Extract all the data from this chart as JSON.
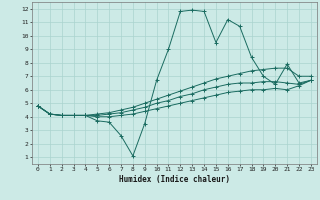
{
  "xlabel": "Humidex (Indice chaleur)",
  "ylabel": "",
  "bg_color": "#cceae6",
  "grid_color": "#aad4cf",
  "line_color": "#1a6b60",
  "xlim": [
    -0.5,
    23.5
  ],
  "ylim": [
    0.5,
    12.5
  ],
  "xticks": [
    0,
    1,
    2,
    3,
    4,
    5,
    6,
    7,
    8,
    9,
    10,
    11,
    12,
    13,
    14,
    15,
    16,
    17,
    18,
    19,
    20,
    21,
    22,
    23
  ],
  "yticks": [
    1,
    2,
    3,
    4,
    5,
    6,
    7,
    8,
    9,
    10,
    11,
    12
  ],
  "series": [
    [
      4.8,
      4.2,
      4.1,
      4.1,
      4.1,
      3.7,
      3.6,
      2.6,
      1.1,
      3.5,
      6.7,
      9.0,
      11.8,
      11.9,
      11.8,
      9.5,
      11.2,
      10.7,
      8.4,
      7.0,
      6.4,
      7.9,
      6.5,
      6.7
    ],
    [
      4.8,
      4.2,
      4.1,
      4.1,
      4.1,
      4.2,
      4.3,
      4.5,
      4.7,
      5.0,
      5.3,
      5.6,
      5.9,
      6.2,
      6.5,
      6.8,
      7.0,
      7.2,
      7.4,
      7.5,
      7.6,
      7.6,
      7.0,
      7.0
    ],
    [
      4.8,
      4.2,
      4.1,
      4.1,
      4.1,
      4.1,
      4.2,
      4.3,
      4.5,
      4.7,
      5.0,
      5.2,
      5.5,
      5.7,
      6.0,
      6.2,
      6.4,
      6.5,
      6.5,
      6.6,
      6.6,
      6.5,
      6.4,
      6.7
    ],
    [
      4.8,
      4.2,
      4.1,
      4.1,
      4.1,
      4.0,
      4.0,
      4.1,
      4.2,
      4.4,
      4.6,
      4.8,
      5.0,
      5.2,
      5.4,
      5.6,
      5.8,
      5.9,
      6.0,
      6.0,
      6.1,
      6.0,
      6.3,
      6.7
    ]
  ]
}
